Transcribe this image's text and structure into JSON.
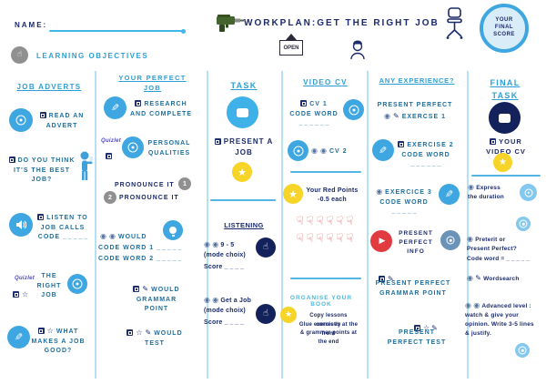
{
  "palette": {
    "navy": "#1b2a6b",
    "steel_text": "#1e6f9f",
    "header_blue": "#2e9fd6",
    "circle_blue": "#3ea6e0",
    "circle_navy": "#14225c",
    "star_yellow": "#f7d428",
    "youtube_red": "#e23b3f",
    "thumb_red": "#e0646b",
    "gray": "#909090",
    "quizlet_purple": "#5149bd",
    "divider_blue": "#b5e0f5"
  },
  "header": {
    "name_label": "NAME:",
    "title": "WORKPLAN:GET THE RIGHT JOB",
    "open_sign": "OPEN",
    "learning_objectives": "LEARNING OBJECTIVES",
    "final_score": "YOUR FINAL SCORE"
  },
  "job_adverts": {
    "header": "JOB ADVERTS",
    "read_advert": "READ AN ADVERT",
    "best_job": "DO YOU THINK IT'S THE BEST JOB?",
    "listen": "LISTEN TO JOB CALLS CODE",
    "listen_blank": "_ _ _ _ _",
    "quizlet": "Quizlet",
    "right_job": "THE RIGHT JOB",
    "what_makes": "WHAT MAKES A JOB GOOD?"
  },
  "perfect_job": {
    "header": "YOUR PERFECT JOB",
    "research": "RESEARCH AND COMPLETE",
    "quizlet": "Quizlet",
    "qualities": "PERSONAL QUALITIES",
    "pronounce_1": "PRONOUNCE IT",
    "num_1": "1",
    "pronounce_2": "PRONOUNCE IT",
    "num_2": "2",
    "would": "WOULD",
    "code_1": "CODE WORD 1",
    "code_1_blank": "_ _ _ _ _",
    "code_2": "CODE WORD 2",
    "code_2_blank": "_ _ _ _ _",
    "grammar": "WOULD GRAMMAR POINT",
    "test": "WOULD TEST"
  },
  "task": {
    "header": "TASK",
    "present": "PRESENT A JOB",
    "listening": "LISTENING",
    "ex1_title": "9 - 5",
    "ex1_mode": "(mode choix)",
    "ex1_score": "Score",
    "ex1_blank": "_ _ _ _",
    "ex2_title": "Get a Job",
    "ex2_mode": "(mode choix)",
    "ex2_score": "Score",
    "ex2_blank": "_ _ _ _"
  },
  "video_cv": {
    "header": "VIDEO CV",
    "cv1": "CV 1",
    "cv1_code": "CODE WORD",
    "cv1_blank": "_ _ _ _ _ _",
    "cv2": "CV 2",
    "red_points_title": "Your Red Points",
    "red_points_sub": "-0.5 each",
    "thumbs_count": 12,
    "organise_header": "ORGANISE YOUR BOOK",
    "organise_line1": "Copy lessons correctly",
    "organise_line2": "Glue exercises at the front",
    "organise_line3": "& grammar points at the end"
  },
  "experience": {
    "header": "ANY EXPERIENCE?",
    "ex1_line1": "PRESENT PERFECT",
    "ex1_line2": "EXERCSE 1",
    "ex2_title": "EXERCISE 2",
    "ex2_code": "CODE WORD",
    "ex2_blank": "_ _ _ _ _ _",
    "ex3_title": "EXERCICE 3",
    "ex3_code": "CODE WORD",
    "ex3_blank": "_ _ _ _ _",
    "info": "PRESENT PERFECT INFO",
    "grammar": "PRESENT PERFECT GRAMMAR POINT",
    "test": "PRESENT PERFECT TEST"
  },
  "final_task": {
    "header": "FINAL TASK",
    "your_video_cv": "YOUR VIDEO CV",
    "express": "Express the duration",
    "preterit": "Preterit or Present Perfect?",
    "code_label": "Code word =",
    "code_blank": "_ _ _ _ _",
    "wordsearch": "Wordsearch",
    "advanced": "Advanced level : watch & give your opinion.  Write 3-5 lines & justify."
  }
}
